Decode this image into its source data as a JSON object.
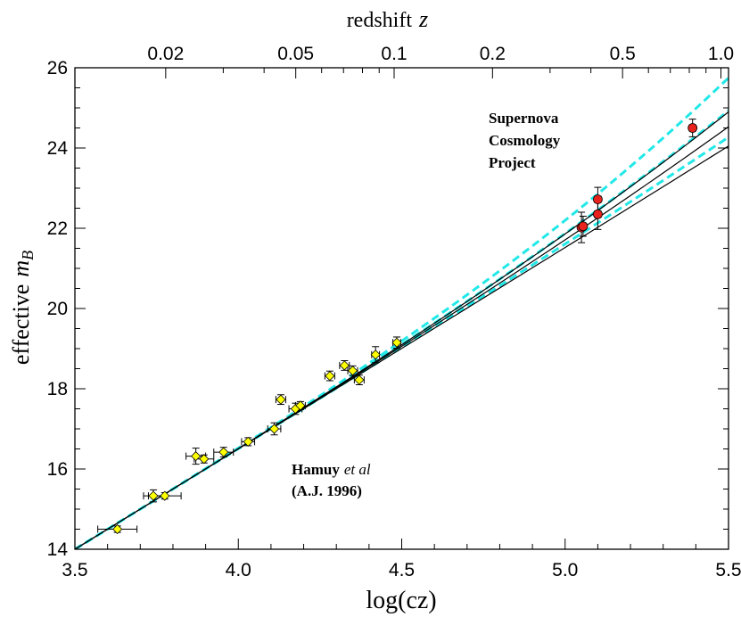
{
  "chart_data": {
    "type": "scatter",
    "title": "",
    "xlabel": "log(cz)",
    "ylabel_prefix": "effective",
    "ylabel_sym": "m",
    "ylabel_sub": "B",
    "top_axis_title": "redshift",
    "top_axis_sym": "z",
    "xlim": [
      3.5,
      5.5
    ],
    "ylim": [
      14,
      26
    ],
    "x_ticks": [
      "3.5",
      "4.0",
      "4.5",
      "5.0",
      "5.5"
    ],
    "y_ticks": [
      "14",
      "16",
      "18",
      "20",
      "22",
      "24",
      "26"
    ],
    "top_ticks": [
      {
        "z": 0.02,
        "label": "0.02"
      },
      {
        "z": 0.05,
        "label": "0.05"
      },
      {
        "z": 0.1,
        "label": "0.1"
      },
      {
        "z": 0.2,
        "label": "0.2"
      },
      {
        "z": 0.5,
        "label": "0.5"
      },
      {
        "z": 1.0,
        "label": "1.0"
      }
    ],
    "annotations": {
      "scp": [
        "Supernova",
        "Cosmology",
        "Project"
      ],
      "hamuy_name": "Hamuy",
      "hamuy_etal": "et al",
      "hamuy_ref": "(A.J. 1996)"
    },
    "colors": {
      "low_z_fill": "#ffff00",
      "high_z_fill": "#e8221c",
      "model_dashed": "#22e8e8",
      "model_solid": "#000000"
    },
    "low_z_points": [
      {
        "x": 3.63,
        "y": 14.5,
        "xerr": 0.06,
        "yerr": 0.08
      },
      {
        "x": 3.74,
        "y": 15.33,
        "xerr": 0.03,
        "yerr": 0.15
      },
      {
        "x": 3.775,
        "y": 15.33,
        "xerr": 0.05,
        "yerr": 0.08
      },
      {
        "x": 3.87,
        "y": 16.32,
        "xerr": 0.03,
        "yerr": 0.2
      },
      {
        "x": 3.895,
        "y": 16.25,
        "xerr": 0.03,
        "yerr": 0.1
      },
      {
        "x": 3.955,
        "y": 16.42,
        "xerr": 0.03,
        "yerr": 0.12
      },
      {
        "x": 4.03,
        "y": 16.68,
        "xerr": 0.02,
        "yerr": 0.1
      },
      {
        "x": 4.11,
        "y": 17.0,
        "xerr": 0.02,
        "yerr": 0.15
      },
      {
        "x": 4.13,
        "y": 17.73,
        "xerr": 0.015,
        "yerr": 0.12
      },
      {
        "x": 4.175,
        "y": 17.5,
        "xerr": 0.02,
        "yerr": 0.14
      },
      {
        "x": 4.19,
        "y": 17.58,
        "xerr": 0.015,
        "yerr": 0.1
      },
      {
        "x": 4.28,
        "y": 18.32,
        "xerr": 0.015,
        "yerr": 0.12
      },
      {
        "x": 4.325,
        "y": 18.58,
        "xerr": 0.015,
        "yerr": 0.12
      },
      {
        "x": 4.35,
        "y": 18.45,
        "xerr": 0.015,
        "yerr": 0.12
      },
      {
        "x": 4.37,
        "y": 18.22,
        "xerr": 0.015,
        "yerr": 0.12
      },
      {
        "x": 4.42,
        "y": 18.85,
        "xerr": 0.012,
        "yerr": 0.2
      },
      {
        "x": 4.485,
        "y": 19.15,
        "xerr": 0.012,
        "yerr": 0.14
      }
    ],
    "high_z_points": [
      {
        "x": 5.05,
        "y": 22.02,
        "xerr": 0.01,
        "yerr": 0.38
      },
      {
        "x": 5.055,
        "y": 22.05,
        "xerr": 0.01,
        "yerr": 0.25
      },
      {
        "x": 5.1,
        "y": 22.72,
        "xerr": 0.01,
        "yerr": 0.3
      },
      {
        "x": 5.1,
        "y": 22.35,
        "xerr": 0.01,
        "yerr": 0.38
      },
      {
        "x": 5.39,
        "y": 24.5,
        "xerr": 0.01,
        "yerr": 0.22
      }
    ],
    "model_curves": [
      {
        "name": "dashed-upper",
        "style": "dashed",
        "y_at_x55": 25.75
      },
      {
        "name": "dashed-middle",
        "style": "dashed",
        "y_at_x55": 24.93
      },
      {
        "name": "dashed-lower",
        "style": "dashed",
        "y_at_x55": 24.27
      },
      {
        "name": "solid-upper",
        "style": "solid",
        "y_at_x55": 24.9
      },
      {
        "name": "solid-middle",
        "style": "solid",
        "y_at_x55": 24.53
      },
      {
        "name": "solid-lower",
        "style": "solid",
        "y_at_x55": 24.05
      }
    ]
  }
}
